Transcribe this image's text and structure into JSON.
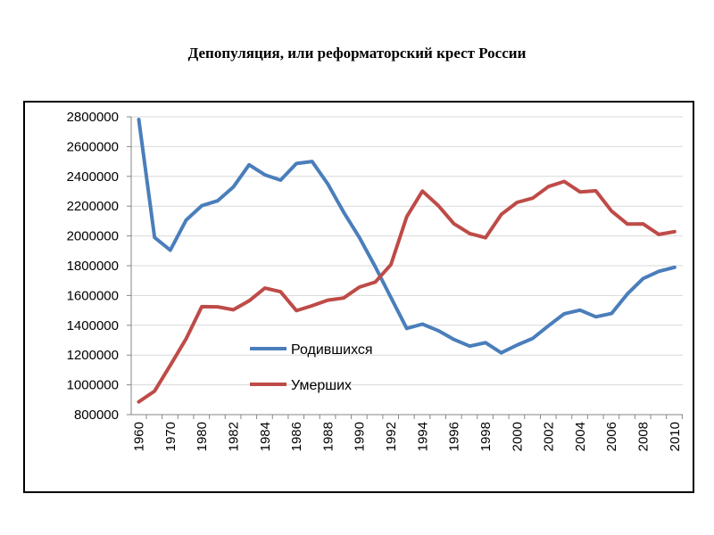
{
  "title": "Депопуляция, или реформаторский крест России",
  "chart_data": {
    "type": "line",
    "title": "Депопуляция, или реформаторский крест России",
    "xlabel": "",
    "ylabel": "",
    "ylim": [
      800000,
      2800000
    ],
    "y_ticks": [
      800000,
      1000000,
      1200000,
      1400000,
      1600000,
      1800000,
      2000000,
      2200000,
      2400000,
      2600000,
      2800000
    ],
    "y_tick_labels": [
      "800000",
      "1000000",
      "1200000",
      "1400000",
      "1600000",
      "1800000",
      "2000000",
      "2200000",
      "2400000",
      "2600000",
      "2800000"
    ],
    "x": [
      "1960",
      "1965",
      "1970",
      "1975",
      "1980",
      "1981",
      "1982",
      "1983",
      "1984",
      "1985",
      "1986",
      "1987",
      "1988",
      "1989",
      "1990",
      "1991",
      "1992",
      "1993",
      "1994",
      "1995",
      "1996",
      "1997",
      "1998",
      "1999",
      "2000",
      "2001",
      "2002",
      "2003",
      "2004",
      "2005",
      "2006",
      "2007",
      "2008",
      "2009",
      "2010"
    ],
    "x_tick_labels": [
      "1960",
      "1970",
      "1980",
      "1982",
      "1984",
      "1986",
      "1988",
      "1990",
      "1992",
      "1994",
      "1996",
      "1998",
      "2000",
      "2002",
      "2004",
      "2006",
      "2008",
      "2010"
    ],
    "grid": true,
    "legend_position": "center-left",
    "series": [
      {
        "name": "Родившихся",
        "color": "#4A7EBB",
        "values": [
          2782000,
          1990000,
          1904000,
          2106000,
          2203000,
          2236000,
          2328000,
          2478000,
          2410000,
          2375000,
          2486000,
          2500000,
          2348000,
          2160000,
          1989000,
          1794000,
          1587000,
          1379000,
          1408000,
          1364000,
          1305000,
          1260000,
          1283000,
          1215000,
          1267000,
          1312000,
          1397000,
          1477000,
          1502000,
          1457000,
          1479000,
          1610000,
          1714000,
          1762000,
          1789000
        ]
      },
      {
        "name": "Умерших",
        "color": "#BE4B48",
        "values": [
          886000,
          958000,
          1131000,
          1309000,
          1525000,
          1524000,
          1504000,
          1564000,
          1650000,
          1625000,
          1498000,
          1531000,
          1569000,
          1583000,
          1656000,
          1690000,
          1807000,
          2129000,
          2301000,
          2204000,
          2082000,
          2016000,
          1988000,
          2144000,
          2225000,
          2254000,
          2332000,
          2366000,
          2296000,
          2303000,
          2167000,
          2080000,
          2081000,
          2010000,
          2029000
        ]
      }
    ]
  }
}
